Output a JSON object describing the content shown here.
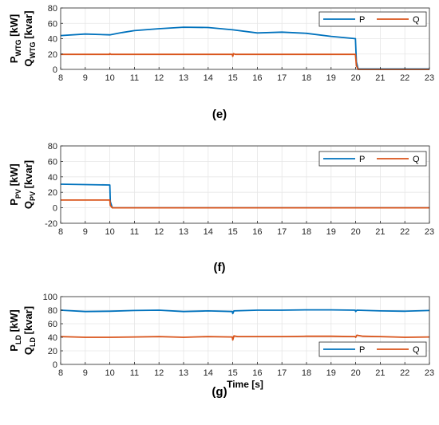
{
  "colors": {
    "P": "#0072BD",
    "Q": "#D95319",
    "grid": "#e6e6e6",
    "axis": "#262626"
  },
  "chart_data": [
    {
      "type": "line",
      "caption": "(e)",
      "ylabel_p": {
        "base": "P",
        "sub": "WTG",
        "unit": " [kW]"
      },
      "ylabel_q": {
        "base": "Q",
        "sub": "WTG",
        "unit": " [kvar]"
      },
      "xlabel": "",
      "xlim": [
        8,
        23
      ],
      "ylim": [
        0,
        80
      ],
      "xticks": [
        "8",
        "9",
        "10",
        "11",
        "12",
        "13",
        "14",
        "15",
        "16",
        "17",
        "18",
        "19",
        "20",
        "21",
        "22",
        "23"
      ],
      "yticks": [
        "0",
        "20",
        "40",
        "60",
        "80"
      ],
      "grid": true,
      "legend": {
        "position": "top-right",
        "entries": [
          "P",
          "Q"
        ]
      },
      "series": [
        {
          "name": "P",
          "color": "#0072BD",
          "x": [
            8,
            9,
            10,
            10.5,
            11,
            12,
            13,
            14,
            15,
            16,
            17,
            18,
            19,
            19.99,
            20.03,
            20.1,
            23
          ],
          "y": [
            44,
            46,
            45,
            48,
            50.5,
            53,
            55,
            54.5,
            51.5,
            47.5,
            48.5,
            47,
            43,
            40,
            10,
            0.5,
            0.5
          ]
        },
        {
          "name": "Q",
          "color": "#D95319",
          "x": [
            8,
            9.99,
            10.0,
            10.05,
            14.98,
            15.0,
            15.03,
            15.1,
            19.99,
            20.03,
            20.1,
            23
          ],
          "y": [
            19.5,
            19.5,
            20.5,
            19.5,
            19.5,
            17,
            20.5,
            19.5,
            19.5,
            5,
            0,
            0
          ]
        }
      ]
    },
    {
      "type": "line",
      "caption": "(f)",
      "ylabel_p": {
        "base": "P",
        "sub": "PV",
        "unit": " [kW]"
      },
      "ylabel_q": {
        "base": "Q",
        "sub": "PV",
        "unit": " [kvar]"
      },
      "xlabel": "",
      "xlim": [
        8,
        23
      ],
      "ylim": [
        -20,
        80
      ],
      "xticks": [
        "8",
        "9",
        "10",
        "11",
        "12",
        "13",
        "14",
        "15",
        "16",
        "17",
        "18",
        "19",
        "20",
        "21",
        "22",
        "23"
      ],
      "yticks": [
        "-20",
        "0",
        "20",
        "40",
        "60",
        "80"
      ],
      "grid": true,
      "legend": {
        "position": "top-right",
        "entries": [
          "P",
          "Q"
        ]
      },
      "series": [
        {
          "name": "P",
          "color": "#0072BD",
          "x": [
            8,
            9,
            10,
            10.02,
            10.1,
            23
          ],
          "y": [
            30.5,
            30,
            29.5,
            8,
            0,
            0
          ]
        },
        {
          "name": "Q",
          "color": "#D95319",
          "x": [
            8,
            10,
            10.02,
            10.1,
            23
          ],
          "y": [
            10,
            10,
            3,
            0,
            0
          ]
        }
      ]
    },
    {
      "type": "line",
      "caption": "(g)",
      "ylabel_p": {
        "base": "P",
        "sub": "LD",
        "unit": " [kW]"
      },
      "ylabel_q": {
        "base": "Q",
        "sub": "LD",
        "unit": " [kvar]"
      },
      "xlabel": "Time [s]",
      "xlim": [
        8,
        23
      ],
      "ylim": [
        0,
        100
      ],
      "xticks": [
        "8",
        "9",
        "10",
        "11",
        "12",
        "13",
        "14",
        "15",
        "16",
        "17",
        "18",
        "19",
        "20",
        "21",
        "22",
        "23"
      ],
      "yticks": [
        "0",
        "20",
        "40",
        "60",
        "80",
        "100"
      ],
      "grid": true,
      "legend": {
        "position": "bottom-right",
        "entries": [
          "P",
          "Q"
        ]
      },
      "series": [
        {
          "name": "P",
          "color": "#0072BD",
          "x": [
            8,
            9,
            10,
            11,
            12,
            13,
            14,
            14.98,
            15.0,
            15.05,
            16,
            17,
            18,
            19,
            19.98,
            20.0,
            20.05,
            21,
            22,
            23
          ],
          "y": [
            80,
            78,
            78.5,
            79.5,
            80,
            78,
            79,
            78,
            75,
            79,
            80,
            80,
            80.5,
            80.5,
            80,
            78,
            80,
            79,
            78.5,
            79.5
          ]
        },
        {
          "name": "Q",
          "color": "#D95319",
          "x": [
            8,
            9,
            10,
            11,
            12,
            13,
            14,
            14.98,
            15.0,
            15.05,
            15.2,
            16,
            17,
            18,
            19,
            19.98,
            20.0,
            20.05,
            20.3,
            21,
            22,
            23
          ],
          "y": [
            41,
            40,
            40,
            40.5,
            41,
            40,
            41,
            40.5,
            36,
            42,
            41,
            41,
            41,
            41.5,
            41.5,
            41,
            40,
            43,
            41.5,
            41,
            40,
            40.5
          ]
        }
      ]
    }
  ]
}
